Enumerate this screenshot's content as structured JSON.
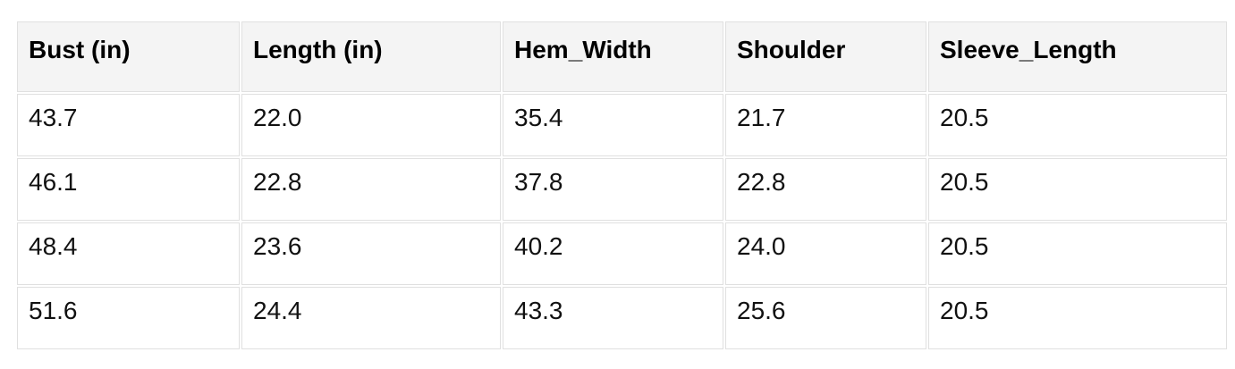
{
  "chart_data": {
    "type": "table",
    "title": "",
    "columns": [
      "Bust (in)",
      "Length (in)",
      "Hem_Width",
      "Shoulder",
      "Sleeve_Length"
    ],
    "rows": [
      [
        "43.7",
        "22.0",
        "35.4",
        "21.7",
        "20.5"
      ],
      [
        "46.1",
        "22.8",
        "37.8",
        "22.8",
        "20.5"
      ],
      [
        "48.4",
        "23.6",
        "40.2",
        "24.0",
        "20.5"
      ],
      [
        "51.6",
        "24.4",
        "43.3",
        "25.6",
        "20.5"
      ]
    ]
  },
  "style": {
    "header_bg": "#f4f4f4",
    "border_color": "#e0e0e0",
    "header_text": "#000000",
    "text_color": "#111111",
    "page_bg": "#ffffff"
  }
}
